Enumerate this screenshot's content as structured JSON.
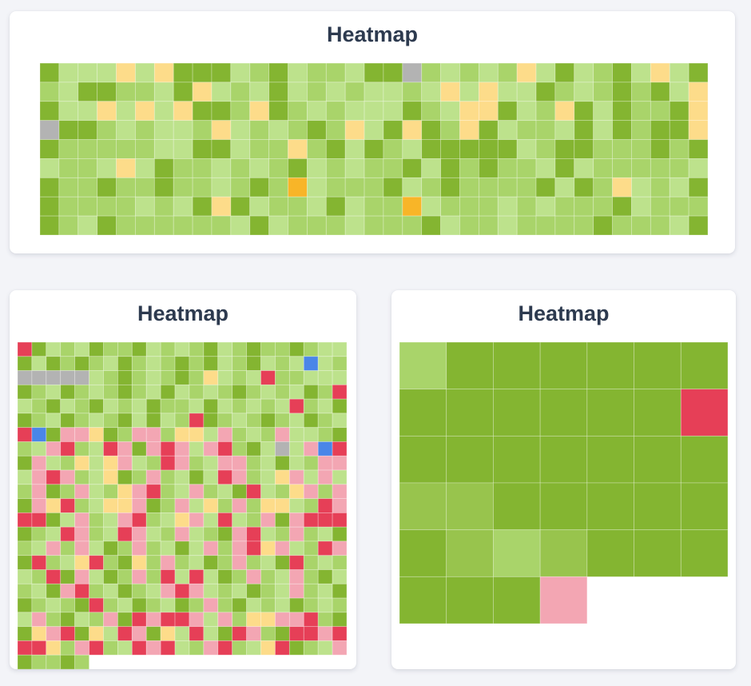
{
  "colors": {
    "very_high": "#84b531",
    "high": "#98c44d",
    "mid": "#a9d46a",
    "low": "#bde28c",
    "warn_light": "#fddc8a",
    "warn": "#f8b528",
    "alert_light": "#f3a6b3",
    "alert": "#e63f57",
    "info": "#4a86e8",
    "na": "#b3b3b3"
  },
  "chart_data": [
    {
      "type": "heatmap",
      "title": "Heatmap",
      "rows": 9,
      "cols": 35,
      "grid": false,
      "values": [
        "hlllwlwhhhlmhlmmlhhamlmlmwlhlmhlwlh",
        "mlhhmmlhwlmlhlmlmllmlwlwllhmlmhmhlw",
        "hllwlwlwhhmwhmlmlllhmlwwhlmwhlhmmhw",
        "ahhmlmllmwlmlmhmwlhwhmwhlmmlhlhmhhw",
        "hmmmmmllhhlmmwmhlhmlhhhhhlmhhmmmhmh",
        "lmmlwlhmmlmlmhlmlmmhlhmhmmlhlmmmmml",
        "hmmhmmhmmlmhmWlmmmhlmhmmmmhlhmwlmlh",
        "hmmmmlmlhwhlmmlhlmmWlmmmlmlmmmhlmmm",
        "hmlhmmmmmmlhlmmmlmmmhlmmlmmmmhmmmlh"
      ]
    },
    {
      "type": "heatmap",
      "title": "Heatmap",
      "rows": 23,
      "cols": 23,
      "grid": false,
      "values": [
        "Ahlmlhmmhlmlmhlmhmmhmll",
        "hlhmhmlhmlmhmhlmhlmlIlm",
        "aaaaalmhmlmhmwlmlAmmlll",
        "hmlhmlmhmlhlmlmhmlmlhmA",
        "lmhlmhlmlhmmlhlmlmlAmlh",
        "hmlhmlmhlhlmAhmlmhmlhml",
        "AIhppwhmppmwwlpmlmpllmh",
        "mlpAmlAphpAplpAmhlalpIA",
        "hplmwlwplmApmlppmlhlmpp",
        "lpApmlwhmpmlhlApmlwplpl",
        "mphmplmwpAmlpmlhAlmwpmp",
        "hpwAmlwwphmplwmpmwwlmAp",
        "AAhlpmlpAmlwplAlmphpAAA",
        "hmlApmlAplmplmhpAlmpmlh",
        "mlpmplhmpmlhlpmpAwplmAp",
        "hAmlwAmhwmpmlhmpmlhAmlm",
        "lmAhplhmpmAlAlhmpmlpmhl",
        "mlhpAmlhmlpAplmlhmlpmlh",
        "hmlmhAmlhmlhmpmhlmlhmlm",
        "lpmhlmphApAAplpmwwppAmh",
        "hwpAhwlAphwlAlhApmhAApA",
        "AAwmpAmlApAlmpAmlwAhmlp",
        "hmmhm"
      ]
    },
    {
      "type": "heatmap",
      "title": "Heatmap",
      "rows": 6,
      "cols": 7,
      "grid": false,
      "values": [
        "mhhhhhh",
        "hhhhhhA",
        "hhhhhhh",
        "HHhhhhh",
        "hHmHhhh",
        "hhhp"
      ]
    }
  ]
}
